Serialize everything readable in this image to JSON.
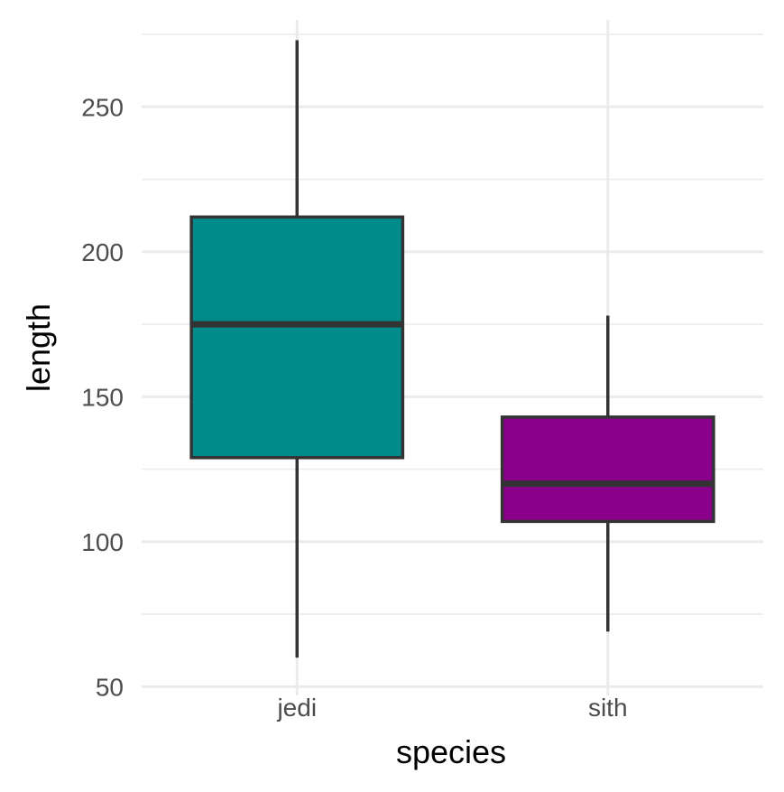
{
  "chart_data": {
    "type": "box",
    "xlabel": "species",
    "ylabel": "length",
    "categories": [
      "jedi",
      "sith"
    ],
    "ylim": [
      47,
      280
    ],
    "yticks": [
      50,
      100,
      150,
      200,
      250
    ],
    "grid": true,
    "boxes": [
      {
        "category": "jedi",
        "min": 60,
        "q1": 129,
        "median": 175,
        "q3": 212,
        "max": 273,
        "color": "#008b8b"
      },
      {
        "category": "sith",
        "min": 69,
        "q1": 107,
        "median": 120,
        "q3": 143,
        "max": 178,
        "color": "#8b008b"
      }
    ],
    "colors": {
      "outline": "#333333",
      "grid": "#ebebeb",
      "background": "#ffffff"
    }
  }
}
